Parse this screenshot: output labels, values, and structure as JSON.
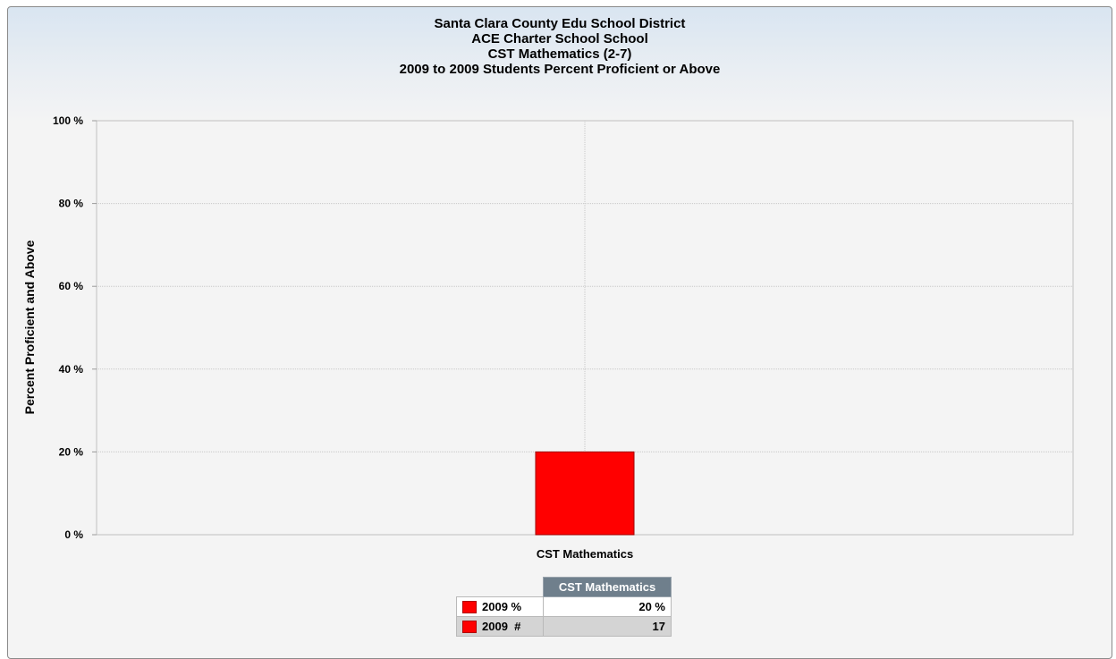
{
  "title_lines": [
    "Santa Clara County Edu School District",
    "ACE Charter School School",
    "CST Mathematics (2-7)",
    "2009 to 2009 Students Percent Proficient or Above"
  ],
  "colors": {
    "bar": "#ff0000",
    "grid": "#c8c8c8",
    "table_header": "#6f7f8c"
  },
  "chart_data": {
    "type": "bar",
    "title": "Santa Clara County Edu School District / ACE Charter School School / CST Mathematics (2-7) / 2009 to 2009 Students Percent Proficient or Above",
    "ylabel": "Percent Proficient and Above",
    "xlabel": "",
    "categories": [
      "CST Mathematics"
    ],
    "series": [
      {
        "name": "2009 %",
        "values": [
          20
        ],
        "color": "#ff0000"
      }
    ],
    "ylim": [
      0,
      100
    ],
    "yticks": [
      0,
      20,
      40,
      60,
      80,
      100
    ],
    "ytick_labels": [
      "0 %",
      "20 %",
      "40 %",
      "60 %",
      "80 %",
      "100 %"
    ],
    "grid": true,
    "legend": "data table below chart"
  },
  "data_table": {
    "header": "CST Mathematics",
    "rows": [
      {
        "label": "2009 %",
        "value": "20 %"
      },
      {
        "label": "2009  #",
        "value": "17"
      }
    ]
  }
}
